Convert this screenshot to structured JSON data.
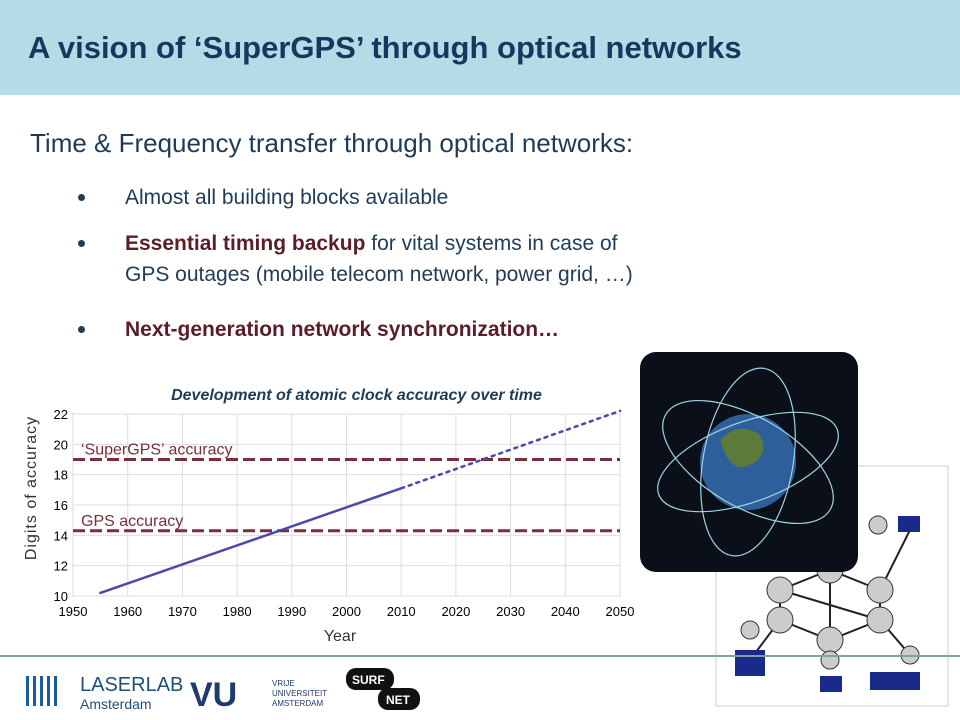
{
  "title": "A vision of ‘SuperGPS’ through optical networks",
  "heading": "Time & Frequency transfer through optical networks:",
  "bullets": [
    {
      "lines": [
        [
          {
            "text": "Almost all building blocks available",
            "bold": false
          }
        ]
      ]
    },
    {
      "lines": [
        [
          {
            "text": "Essential timing backup",
            "bold": true
          },
          {
            "text": " for vital systems in case of",
            "bold": false
          }
        ],
        [
          {
            "text": "GPS outages (mobile telecom network, power grid, …)",
            "bold": false
          }
        ]
      ]
    },
    {
      "lines": [
        [
          {
            "text": "Next-generation network synchronization…",
            "bold": true
          }
        ]
      ]
    }
  ],
  "chart_data": {
    "type": "line",
    "title": "Development of atomic clock accuracy over time",
    "x_label": "Year",
    "y_label": "Digits of accuracy",
    "series": [
      {
        "color": "#4a4aa8",
        "dash": false,
        "x": [
          1955,
          2010
        ],
        "values": [
          10.2,
          17.1
        ]
      },
      {
        "color": "#4a4aa8",
        "dash": true,
        "x": [
          2010,
          2050
        ],
        "values": [
          17.1,
          22.2
        ]
      }
    ],
    "annotations": [
      {
        "text": "‘SuperGPS’ accuracy",
        "value": 19,
        "color": "#7a2e3a"
      },
      {
        "text": "GPS accuracy",
        "value": 14.3,
        "color": "#7a2e3a"
      }
    ],
    "xlim": [
      1950,
      2050
    ],
    "xticks": [
      1950,
      1960,
      1970,
      1980,
      1990,
      2000,
      2010,
      2020,
      2030,
      2040,
      2050
    ],
    "ylim": [
      10,
      22
    ],
    "yticks": [
      10,
      12,
      14,
      16,
      18,
      20,
      22
    ],
    "grid": true
  },
  "logos": {
    "laserlab": "LASERLAB",
    "amsterdam": "Amsterdam",
    "vu": "VU",
    "vu1": "VRIJE",
    "vu2": "UNIVERSITEIT",
    "vu3": "AMSTERDAM",
    "surf": "SURF",
    "net": "NET"
  }
}
